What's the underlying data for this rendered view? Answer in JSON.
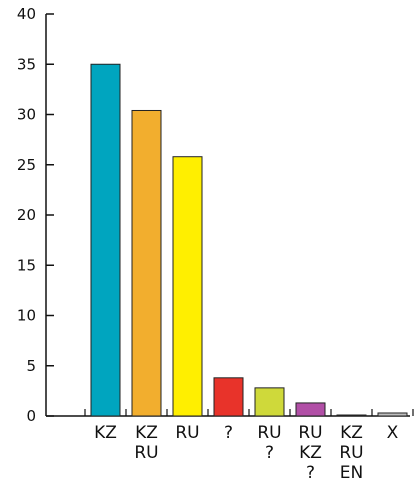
{
  "chart_data": {
    "type": "bar",
    "title": "",
    "xlabel": "",
    "ylabel": "",
    "ylim": [
      0,
      40
    ],
    "yticks": [
      0,
      5,
      10,
      15,
      20,
      25,
      30,
      35,
      40
    ],
    "grid": false,
    "legend": "none",
    "categories": [
      [
        "KZ"
      ],
      [
        "KZ",
        "RU"
      ],
      [
        "RU"
      ],
      [
        "?"
      ],
      [
        "RU",
        "?"
      ],
      [
        "RU",
        "KZ",
        "?"
      ],
      [
        "KZ",
        "RU",
        "EN"
      ],
      [
        "X"
      ]
    ],
    "values": [
      35.0,
      30.4,
      25.8,
      3.8,
      2.8,
      1.3,
      0.1,
      0.3
    ],
    "colors": [
      "#00a5bf",
      "#f2ae2e",
      "#ffef00",
      "#e8332a",
      "#cfd93a",
      "#b14fa6",
      "#a8a8a8",
      "#bdbdbd"
    ]
  }
}
